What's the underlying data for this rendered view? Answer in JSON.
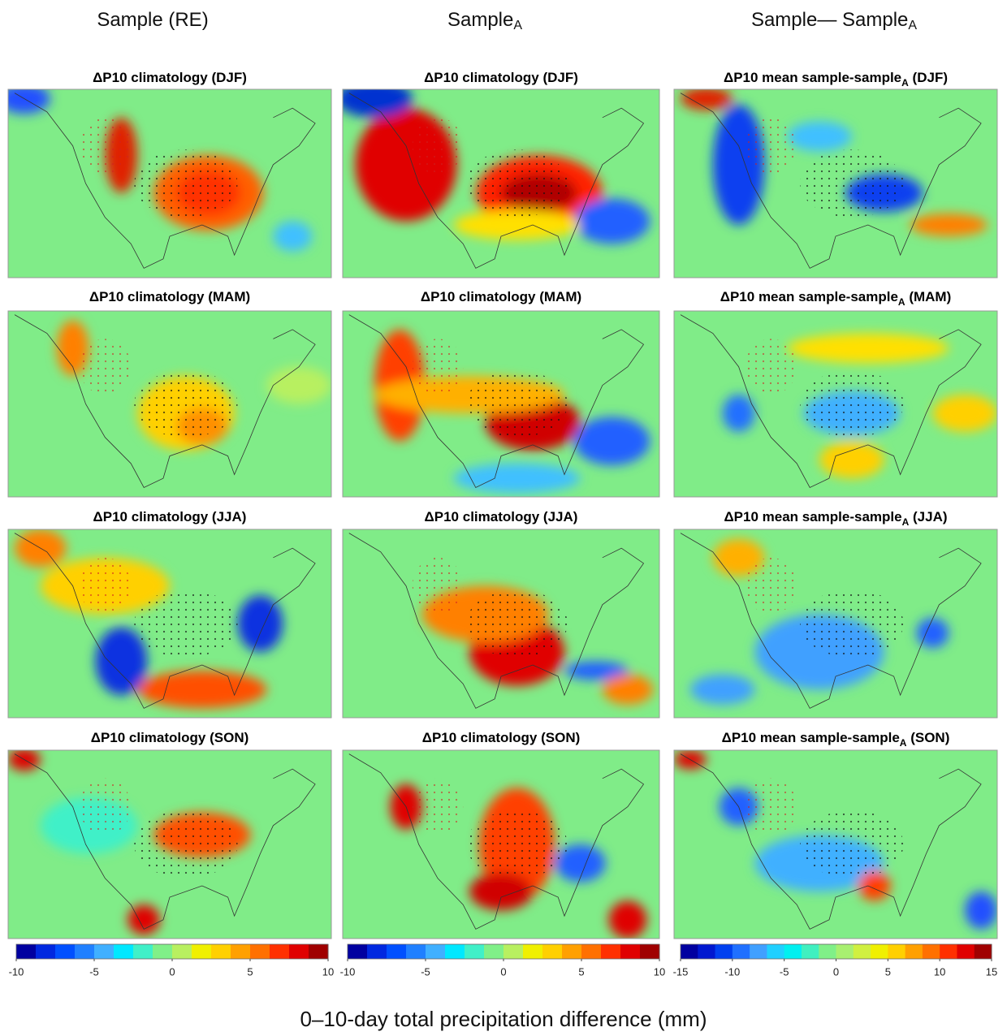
{
  "column_headers": [
    {
      "text": "Sample (RE)"
    },
    {
      "text": "Sample",
      "sub": "A"
    },
    {
      "text": "Sample— Sample",
      "sub": "A"
    }
  ],
  "panels": [
    {
      "text": "ΔP10 climatology (DJF)"
    },
    {
      "text": "ΔP10 climatology (DJF)"
    },
    {
      "text": "ΔP10 mean sample-sample",
      "sub": "A",
      "tail": " (DJF)"
    },
    {
      "text": "ΔP10 climatology (MAM)"
    },
    {
      "text": "ΔP10 climatology (MAM)"
    },
    {
      "text": "ΔP10 mean sample-sample",
      "sub": "A",
      "tail": " (MAM)"
    },
    {
      "text": "ΔP10 climatology (JJA)"
    },
    {
      "text": "ΔP10 climatology (JJA)"
    },
    {
      "text": "ΔP10 mean sample-sample",
      "sub": "A",
      "tail": " (JJA)"
    },
    {
      "text": "ΔP10 climatology (SON)"
    },
    {
      "text": "ΔP10 climatology (SON)"
    },
    {
      "text": "ΔP10 mean sample-sample",
      "sub": "A",
      "tail": " (SON)"
    }
  ],
  "colorbars": [
    {
      "lim": [
        -10,
        10
      ],
      "ticks": [
        -10,
        -5,
        0,
        5,
        10
      ],
      "colors": [
        "#0000a0",
        "#0028e0",
        "#0050ff",
        "#2080ff",
        "#40b0ff",
        "#00e8ff",
        "#40f0c8",
        "#80f088",
        "#b8f060",
        "#f0f000",
        "#ffd000",
        "#ffa000",
        "#ff7000",
        "#ff3000",
        "#e00000",
        "#a00000"
      ]
    },
    {
      "lim": [
        -10,
        10
      ],
      "ticks": [
        -10,
        -5,
        0,
        5,
        10
      ],
      "colors": [
        "#0000a0",
        "#0028e0",
        "#0050ff",
        "#2080ff",
        "#40b0ff",
        "#00e8ff",
        "#40f0c8",
        "#80f088",
        "#b8f060",
        "#f0f000",
        "#ffd000",
        "#ffa000",
        "#ff7000",
        "#ff3000",
        "#e00000",
        "#a00000"
      ]
    },
    {
      "lim": [
        -15,
        15
      ],
      "ticks": [
        -15,
        -10,
        -5,
        0,
        5,
        10,
        15
      ],
      "colors": [
        "#0000a0",
        "#0018d0",
        "#0040f0",
        "#2070ff",
        "#40a0ff",
        "#20d0ff",
        "#00f0f0",
        "#40f0c0",
        "#80f088",
        "#a8f070",
        "#d0f040",
        "#f0f000",
        "#ffd000",
        "#ffa000",
        "#ff7000",
        "#ff3000",
        "#e00000",
        "#a00000"
      ]
    }
  ],
  "footer": "0–10-day total precipitation difference (mm)"
}
